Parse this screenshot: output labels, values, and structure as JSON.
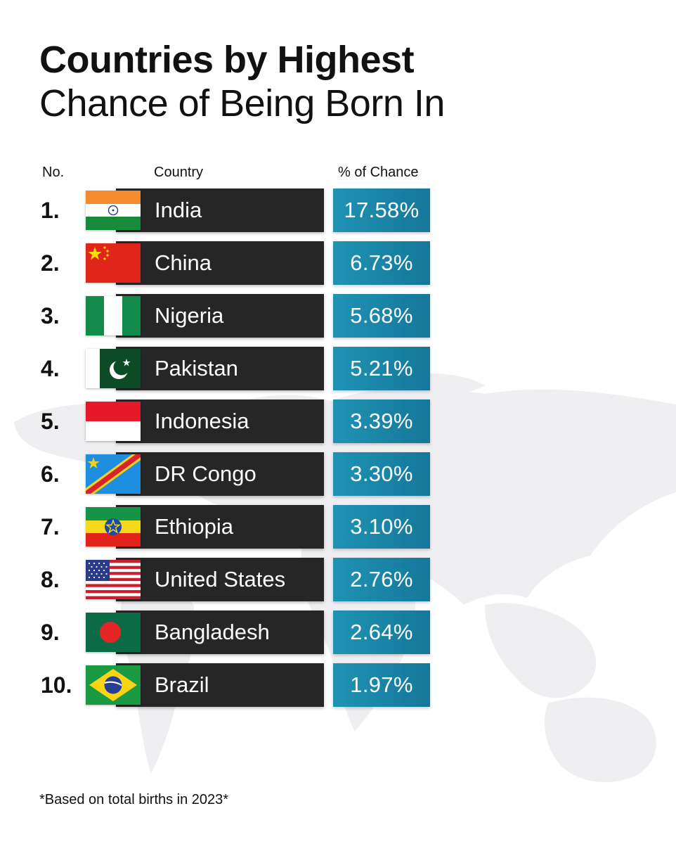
{
  "title_line1": "Countries by Highest",
  "title_line2": "Chance of Being Born In",
  "headers": {
    "no": "No.",
    "country": "Country",
    "pct": "% of Chance"
  },
  "footnote": "*Based on total births in 2023*",
  "chart_data": {
    "type": "table",
    "title": "Countries by Highest Chance of Being Born In",
    "columns": [
      "No.",
      "Country",
      "% of Chance"
    ],
    "rows": [
      {
        "rank": "1.",
        "country": "India",
        "flag": "india-flag",
        "pct_label": "17.58%",
        "value": 17.58
      },
      {
        "rank": "2.",
        "country": "China",
        "flag": "china-flag",
        "pct_label": "6.73%",
        "value": 6.73
      },
      {
        "rank": "3.",
        "country": "Nigeria",
        "flag": "nigeria-flag",
        "pct_label": "5.68%",
        "value": 5.68
      },
      {
        "rank": "4.",
        "country": "Pakistan",
        "flag": "pakistan-flag",
        "pct_label": "5.21%",
        "value": 5.21
      },
      {
        "rank": "5.",
        "country": "Indonesia",
        "flag": "indonesia-flag",
        "pct_label": "3.39%",
        "value": 3.39
      },
      {
        "rank": "6.",
        "country": "DR Congo",
        "flag": "dr-congo-flag",
        "pct_label": "3.30%",
        "value": 3.3
      },
      {
        "rank": "7.",
        "country": "Ethiopia",
        "flag": "ethiopia-flag",
        "pct_label": "3.10%",
        "value": 3.1
      },
      {
        "rank": "8.",
        "country": "United States",
        "flag": "united-states-flag",
        "pct_label": "2.76%",
        "value": 2.76
      },
      {
        "rank": "9.",
        "country": "Bangladesh",
        "flag": "bangladesh-flag",
        "pct_label": "2.64%",
        "value": 2.64
      },
      {
        "rank": "10.",
        "country": "Brazil",
        "flag": "brazil-flag",
        "pct_label": "1.97%",
        "value": 1.97
      }
    ]
  },
  "colors": {
    "name_bar": "#262626",
    "pct_bar": "#1a86a8",
    "text_dark": "#111111",
    "map_gray": "#eeeeef"
  }
}
